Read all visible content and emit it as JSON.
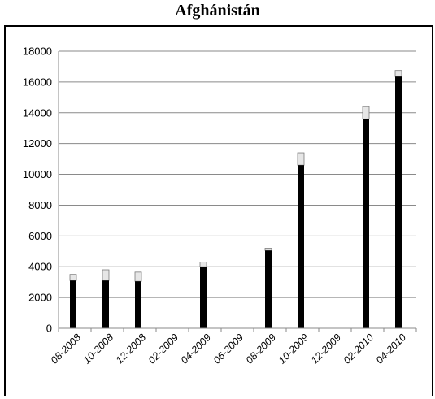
{
  "chart_data": {
    "type": "bar",
    "title": "Afghánistán",
    "xlabel": "",
    "ylabel": "",
    "ylim": [
      0,
      18000
    ],
    "yticks": [
      0,
      2000,
      4000,
      6000,
      8000,
      10000,
      12000,
      14000,
      16000,
      18000
    ],
    "x_tick_labels": [
      "08-2008",
      "10-2008",
      "12-2008",
      "02-2009",
      "04-2009",
      "06-2009",
      "08-2009",
      "10-2009",
      "12-2009",
      "02-2010",
      "04-2010"
    ],
    "grid": true,
    "stacked": true,
    "series": [
      {
        "color": "#000000",
        "values": [
          3100,
          3100,
          3050,
          4000,
          5050,
          10600,
          13600,
          16350
        ]
      },
      {
        "color": "#e6e6e6",
        "values": [
          400,
          700,
          600,
          300,
          150,
          800,
          800,
          400
        ]
      }
    ],
    "bar_positions": [
      "08-2008",
      "10-2008",
      "12-2008",
      "04-2009",
      "08-2009",
      "10-2009",
      "02-2010",
      "04-2010"
    ]
  }
}
